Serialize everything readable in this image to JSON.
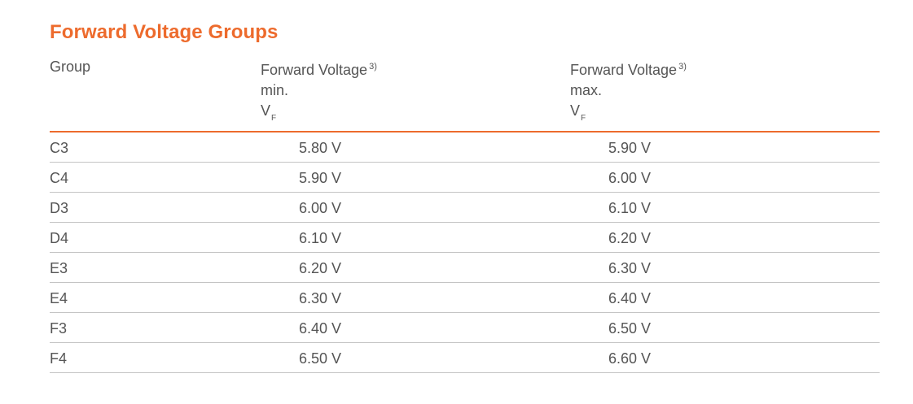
{
  "title": "Forward Voltage Groups",
  "headers": {
    "group": "Group",
    "min": {
      "line1": "Forward Voltage",
      "footnote": "3)",
      "line2": "min.",
      "symbol": "V",
      "subscript": "F"
    },
    "max": {
      "line1": "Forward Voltage",
      "footnote": "3)",
      "line2": "max.",
      "symbol": "V",
      "subscript": "F"
    }
  },
  "rows": [
    {
      "group": "C3",
      "min": "5.80 V",
      "max": "5.90 V"
    },
    {
      "group": "C4",
      "min": "5.90 V",
      "max": "6.00 V"
    },
    {
      "group": "D3",
      "min": "6.00 V",
      "max": "6.10 V"
    },
    {
      "group": "D4",
      "min": "6.10 V",
      "max": "6.20 V"
    },
    {
      "group": "E3",
      "min": "6.20 V",
      "max": "6.30 V"
    },
    {
      "group": "E4",
      "min": "6.30 V",
      "max": "6.40 V"
    },
    {
      "group": "F3",
      "min": "6.40 V",
      "max": "6.50 V"
    },
    {
      "group": "F4",
      "min": "6.50 V",
      "max": "6.60 V"
    }
  ]
}
